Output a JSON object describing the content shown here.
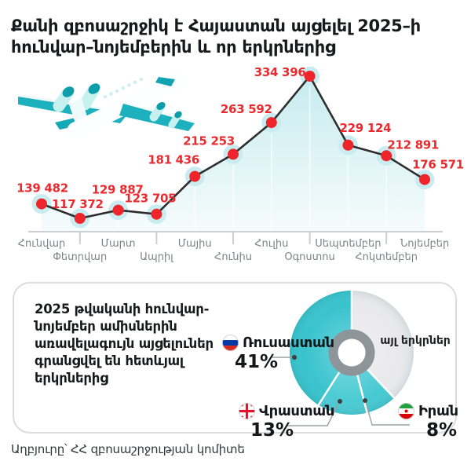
{
  "title": {
    "line1": "Քանի զբոսաշրջիկ է Հայաստան այցելել 2025–ի",
    "line2": "հունվար–նոյեմբերին և որ երկրներից"
  },
  "chart_data": [
    {
      "type": "line",
      "title": "Visitors to Armenia by month, Jan–Nov 2025",
      "categories": [
        "Հունվար",
        "Փետրվար",
        "Մարտ",
        "Ապրիլ",
        "Մայիս",
        "Հունիս",
        "Հուլիս",
        "Օգոստոս",
        "Սեպտեմբեր",
        "Հոկտեմբեր",
        "Նոյեմբեր"
      ],
      "values": [
        139482,
        117372,
        129887,
        123705,
        181436,
        215253,
        263592,
        334396,
        229124,
        212891,
        176571
      ],
      "value_labels": [
        "139 482",
        "117 372",
        "129 887",
        "123 705",
        "181 436",
        "215 253",
        "263 592",
        "334 396",
        "229 124",
        "212 891",
        "176 571"
      ],
      "xlabel": "",
      "ylabel": "",
      "ylim": [
        110000,
        340000
      ],
      "grid": "faint vertical lines under curve",
      "area": true,
      "line_color": "#2e2e2e",
      "point_color": "#ee262b",
      "point_halo_color": "#c8ecf0",
      "value_label_color": "#e92a2e",
      "axis_color": "#cbced3",
      "month_label_color": "#7e838a",
      "area_top_color": "#c3eaee",
      "area_bottom_color": "#f4fbfc"
    },
    {
      "type": "pie",
      "donut": true,
      "note": "rendered clockwise from top: other, Iran, Georgia, Russia",
      "slices": [
        {
          "label": "Ռուսաստան",
          "value": 41,
          "color": "#38c3cd"
        },
        {
          "label": "Վրաստան",
          "value": 13,
          "color": "#4ccbd3"
        },
        {
          "label": "Իրան",
          "value": 8,
          "color": "#46c9d2"
        },
        {
          "label": "այլ երկրներ",
          "value": 38,
          "color": "#e9e9ec"
        }
      ],
      "ring_color": "#8e959a",
      "hole_color": "#ffffff",
      "leader_line_color": "#9aa0a5",
      "leader_dot_color": "#3c4043"
    }
  ],
  "panel": {
    "description": "2025 թվականի հունվար-նոյեմբեր ամիսներին առավելագույն այցելուներ գրանցվել են հետևյալ երկրներից",
    "legend": [
      {
        "country": "Ռուսաստան",
        "percent": "41%",
        "flag": "russia-flag-icon"
      },
      {
        "country": "Վրաստան",
        "percent": "13%",
        "flag": "georgia-flag-icon"
      },
      {
        "country": "Իրան",
        "percent": "8%",
        "flag": "iran-flag-icon"
      }
    ],
    "other_label": "այլ երկրներ"
  },
  "source": "Աղբյուրը՝ ՀՀ զբոսաշրջության կոմիտե"
}
